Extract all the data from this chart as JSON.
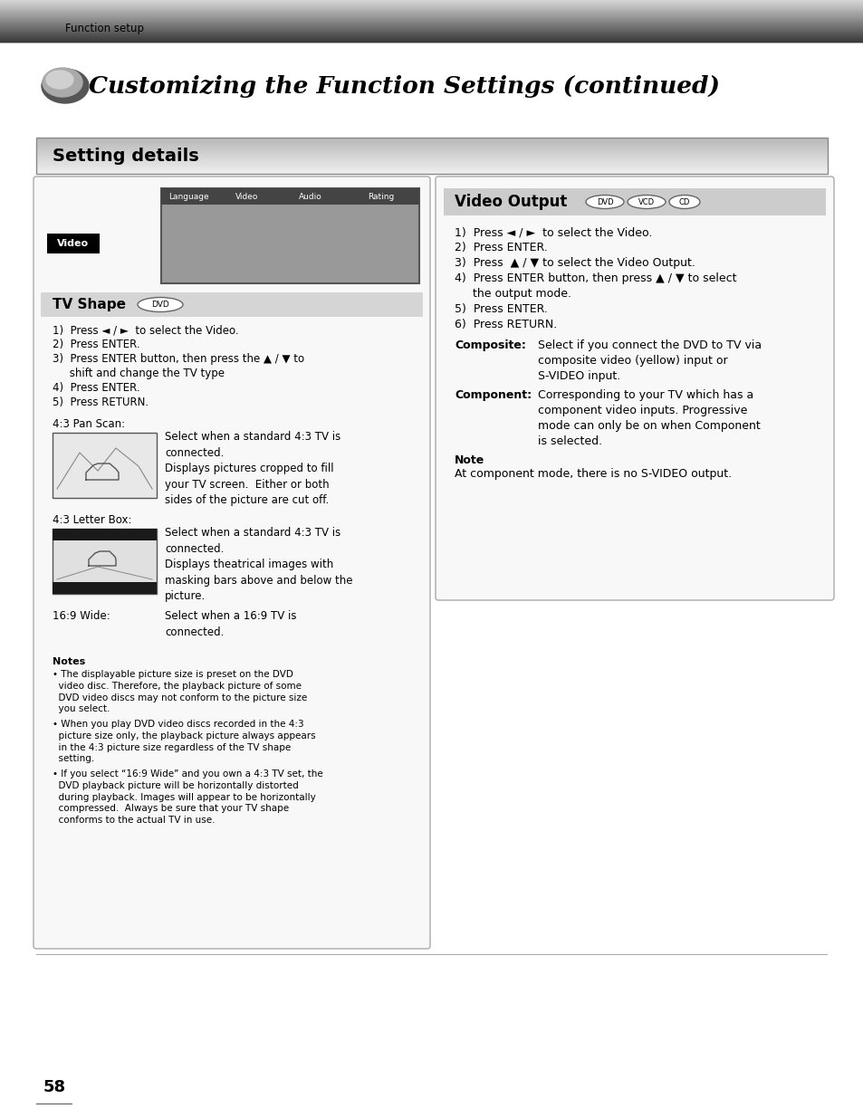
{
  "page_bg": "#ffffff",
  "header_text": "Function setup",
  "title": "Customizing the Function Settings (continued)",
  "section_title": "Setting details",
  "tv_shape_title": "TV Shape",
  "tv_shape_badge": "DVD",
  "tv_shape_steps": [
    "1)  Press ◄ / ►  to select the Video.",
    "2)  Press ENTER.",
    "3)  Press ENTER button, then press the ▲ / ▼ to",
    "     shift and change the TV type",
    "4)  Press ENTER.",
    "5)  Press RETURN."
  ],
  "pan_scan_label": "4:3 Pan Scan:",
  "pan_scan_text": "Select when a standard 4:3 TV is\nconnected.\nDisplays pictures cropped to fill\nyour TV screen.  Either or both\nsides of the picture are cut off.",
  "letter_box_label": "4:3 Letter Box:",
  "letter_box_text": "Select when a standard 4:3 TV is\nconnected.\nDisplays theatrical images with\nmasking bars above and below the\npicture.",
  "wide_label": "16:9 Wide:",
  "wide_text": "Select when a 16:9 TV is\nconnected.",
  "notes_title": "Notes",
  "notes": [
    "• The displayable picture size is preset on the DVD\n  video disc. Therefore, the playback picture of some\n  DVD video discs may not conform to the picture size\n  you select.",
    "• When you play DVD video discs recorded in the 4:3\n  picture size only, the playback picture always appears\n  in the 4:3 picture size regardless of the TV shape\n  setting.",
    "• If you select “16:9 Wide” and you own a 4:3 TV set, the\n  DVD playback picture will be horizontally distorted\n  during playback. Images will appear to be horizontally\n  compressed.  Always be sure that your TV shape\n  conforms to the actual TV in use."
  ],
  "video_output_title": "Video Output",
  "video_output_steps": [
    "1)  Press ◄ / ►  to select the Video.",
    "2)  Press ENTER.",
    "3)  Press  ▲ / ▼ to select the Video Output.",
    "4)  Press ENTER button, then press ▲ / ▼ to select",
    "     the output mode.",
    "5)  Press ENTER.",
    "6)  Press RETURN."
  ],
  "composite_label": "Composite:",
  "composite_text": "Select if you connect the DVD to TV via\ncomposite video (yellow) input or\nS-VIDEO input.",
  "component_label": "Component:",
  "component_text": "Corresponding to your TV which has a\ncomponent video inputs. Progressive\nmode can only be on when Component\nis selected.",
  "note_title": "Note",
  "note_text": "At component mode, there is no S-VIDEO output.",
  "page_number": "58"
}
